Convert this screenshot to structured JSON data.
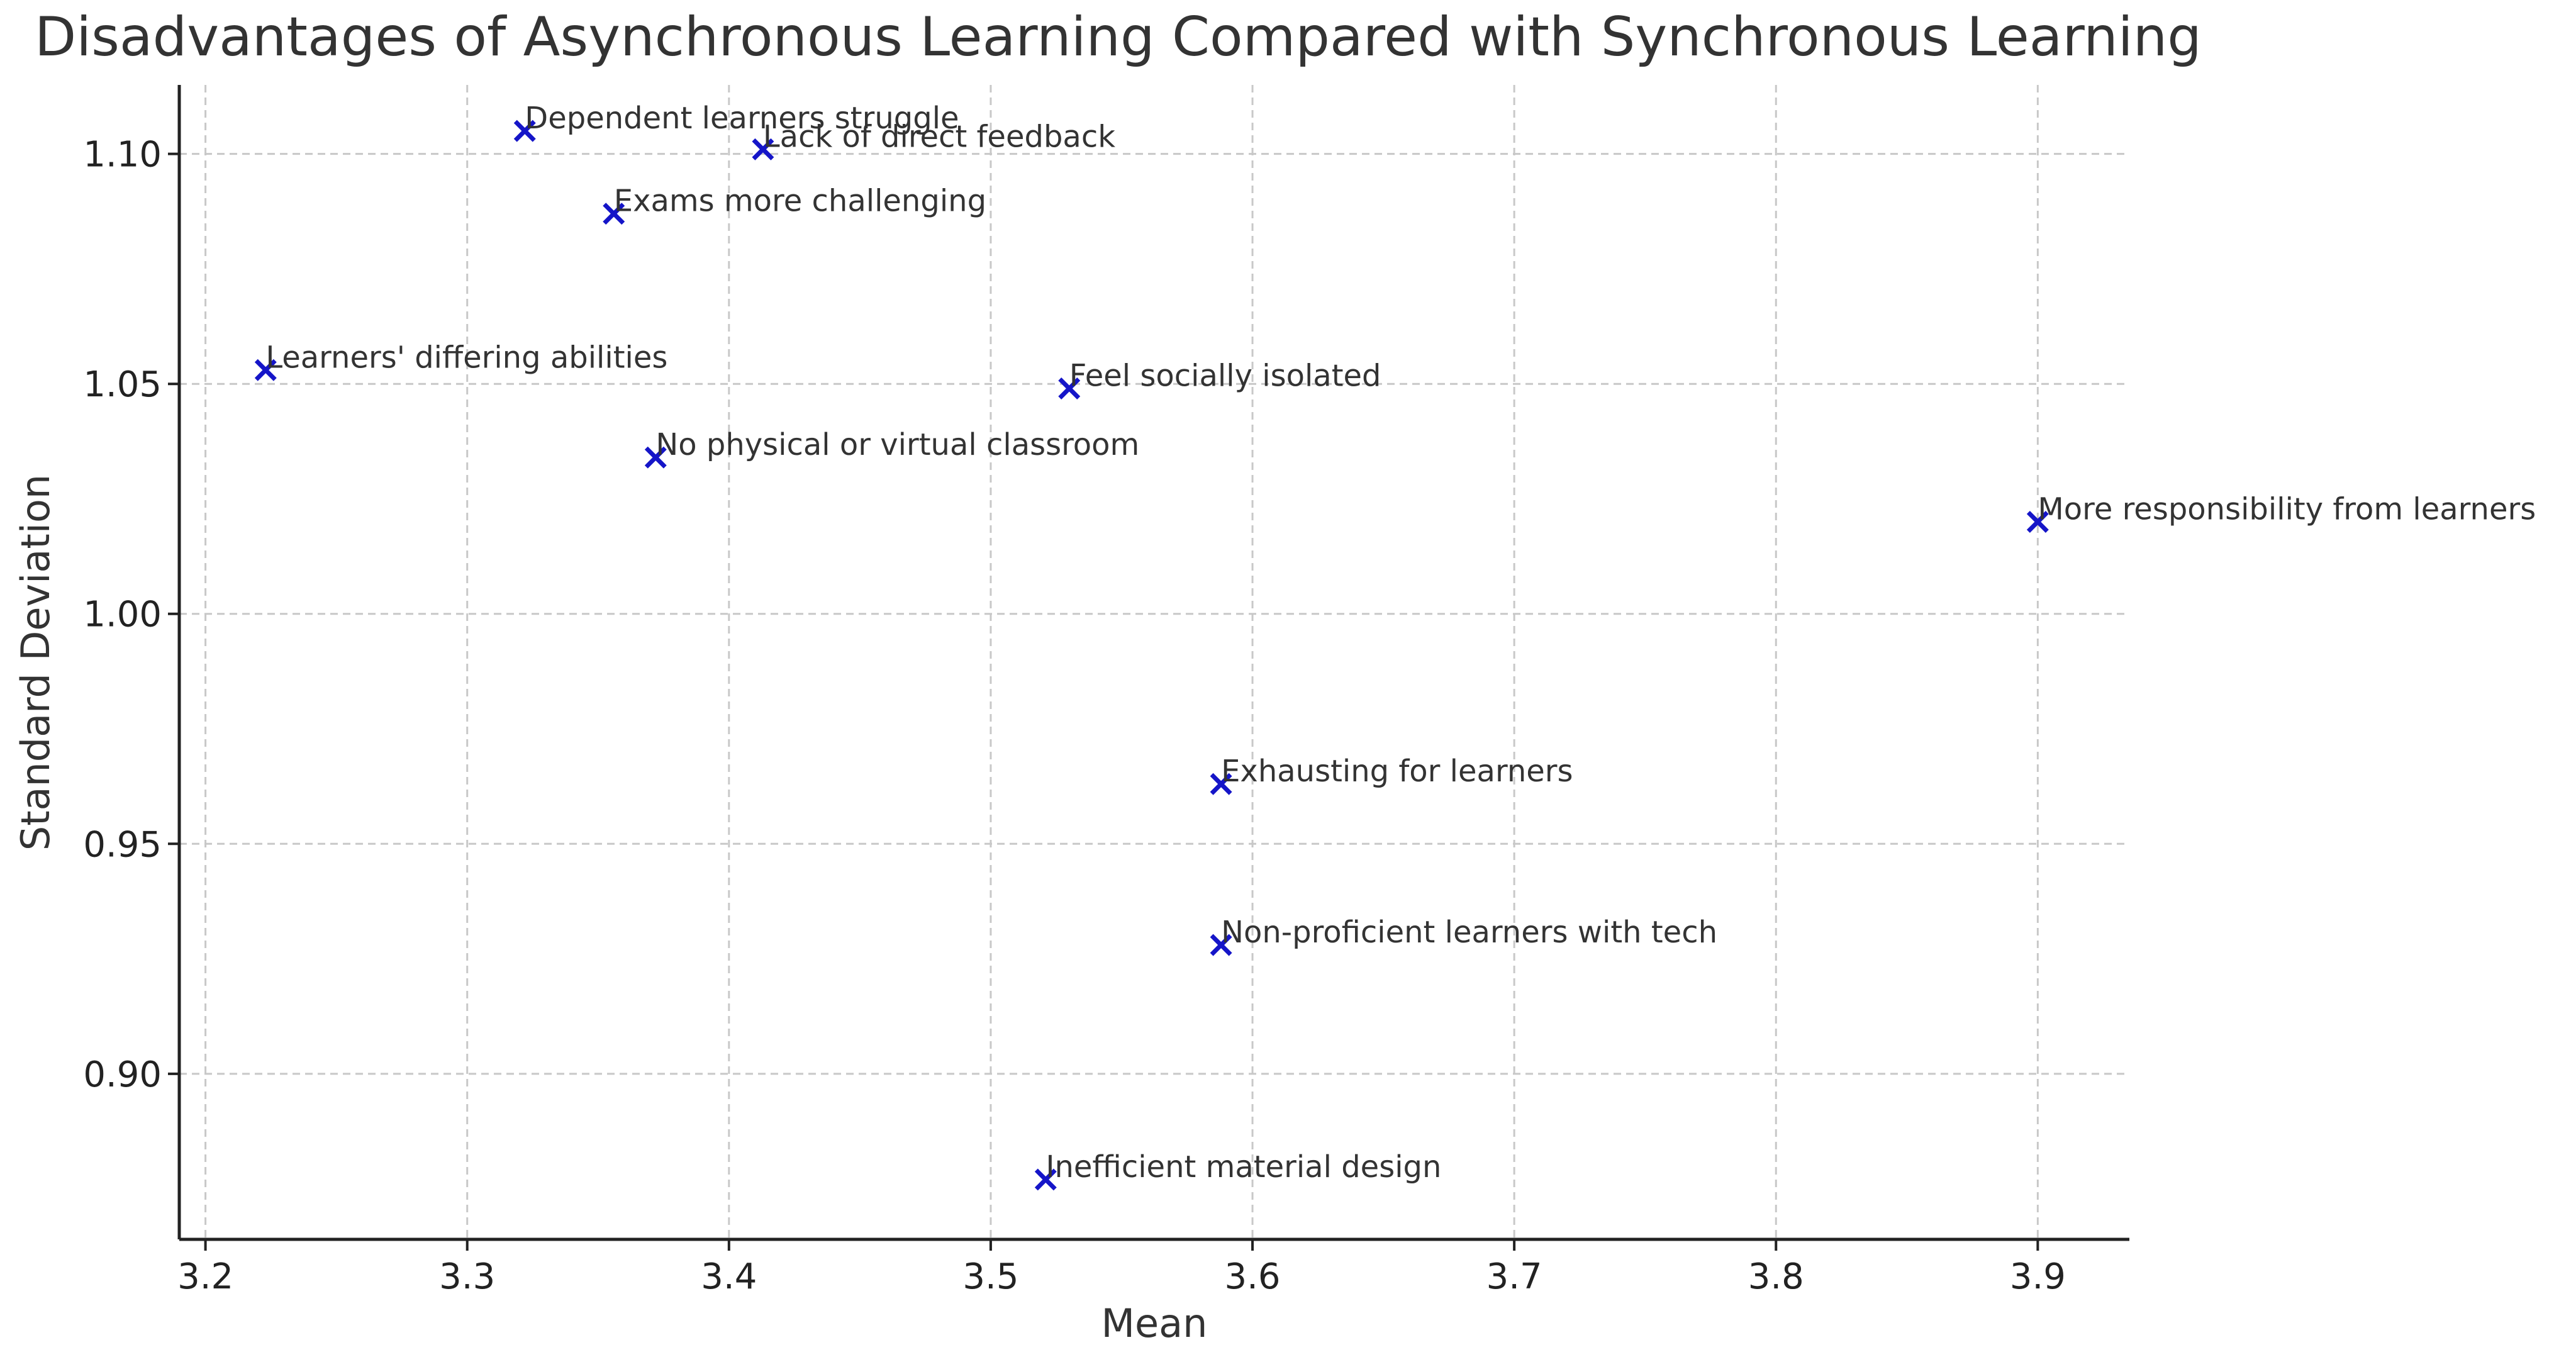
{
  "chart_data": {
    "type": "scatter",
    "title": "Disadvantages of Asynchronous Learning Compared with Synchronous Learning",
    "xlabel": "Mean",
    "ylabel": "Standard Deviation",
    "xlim": [
      3.19,
      3.935
    ],
    "ylim": [
      0.864,
      1.115
    ],
    "xticks": [
      3.2,
      3.3,
      3.4,
      3.5,
      3.6,
      3.7,
      3.8,
      3.9
    ],
    "xtick_labels": [
      "3.2",
      "3.3",
      "3.4",
      "3.5",
      "3.6",
      "3.7",
      "3.8",
      "3.9"
    ],
    "yticks": [
      0.9,
      0.95,
      1.0,
      1.05,
      1.1
    ],
    "ytick_labels": [
      "0.90",
      "0.95",
      "1.00",
      "1.05",
      "1.10"
    ],
    "grid": true,
    "marker": "x",
    "marker_color": "#1515c8",
    "points": [
      {
        "label": "Dependent learners struggle",
        "x": 3.322,
        "y": 1.105
      },
      {
        "label": "Lack of direct feedback",
        "x": 3.413,
        "y": 1.101
      },
      {
        "label": "Exams more challenging",
        "x": 3.356,
        "y": 1.087
      },
      {
        "label": "Learners' differing abilities",
        "x": 3.223,
        "y": 1.053
      },
      {
        "label": "Feel socially isolated",
        "x": 3.53,
        "y": 1.049
      },
      {
        "label": "No physical or virtual classroom",
        "x": 3.372,
        "y": 1.034
      },
      {
        "label": "More responsibility from learners",
        "x": 3.9,
        "y": 1.02
      },
      {
        "label": "Exhausting for learners",
        "x": 3.588,
        "y": 0.963
      },
      {
        "label": "Non-proficient learners with tech",
        "x": 3.588,
        "y": 0.928
      },
      {
        "label": "Inefficient material design",
        "x": 3.521,
        "y": 0.877
      }
    ]
  }
}
